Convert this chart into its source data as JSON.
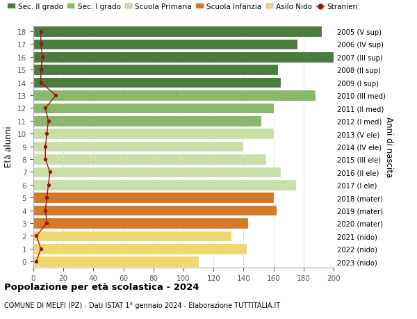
{
  "ages": [
    0,
    1,
    2,
    3,
    4,
    5,
    6,
    7,
    8,
    9,
    10,
    11,
    12,
    13,
    14,
    15,
    16,
    17,
    18
  ],
  "right_labels": [
    "2023 (nido)",
    "2022 (nido)",
    "2021 (nido)",
    "2020 (mater)",
    "2019 (mater)",
    "2018 (mater)",
    "2017 (I ele)",
    "2016 (II ele)",
    "2015 (III ele)",
    "2014 (IV ele)",
    "2013 (V ele)",
    "2012 (I med)",
    "2011 (II med)",
    "2010 (III med)",
    "2009 (I sup)",
    "2008 (II sup)",
    "2007 (III sup)",
    "2006 (IV sup)",
    "2005 (V sup)"
  ],
  "bar_values": [
    110,
    142,
    132,
    143,
    162,
    160,
    175,
    165,
    155,
    140,
    160,
    152,
    160,
    188,
    165,
    163,
    202,
    176,
    192
  ],
  "stranieri_values": [
    2,
    5,
    2,
    9,
    8,
    9,
    10,
    11,
    8,
    8,
    9,
    10,
    8,
    15,
    5,
    5,
    6,
    5,
    5
  ],
  "bar_colors": [
    "#f0d870",
    "#f0d870",
    "#f0d870",
    "#d4782a",
    "#d4782a",
    "#d4782a",
    "#c8e0a8",
    "#c8e0a8",
    "#c8e0a8",
    "#c8e0a8",
    "#c8e0a8",
    "#8ab86a",
    "#8ab86a",
    "#8ab86a",
    "#4a7c3f",
    "#4a7c3f",
    "#4a7c3f",
    "#4a7c3f",
    "#4a7c3f"
  ],
  "legend_labels": [
    "Sec. II grado",
    "Sec. I grado",
    "Scuola Primaria",
    "Scuola Infanzia",
    "Asilo Nido",
    "Stranieri"
  ],
  "legend_colors": [
    "#4a7c3f",
    "#8ab86a",
    "#c8e0a8",
    "#d4782a",
    "#f0d870",
    "#a01010"
  ],
  "title": "Popolazione per età scolastica - 2024",
  "subtitle": "COMUNE DI MELFI (PZ) - Dati ISTAT 1° gennaio 2024 - Elaborazione TUTTITALIA.IT",
  "ylabel": "Età alunni",
  "right_ylabel": "Anni di nascita",
  "xlim": [
    0,
    200
  ],
  "xticks": [
    0,
    20,
    40,
    60,
    80,
    100,
    120,
    140,
    160,
    180,
    200
  ],
  "stranieri_color": "#a01010",
  "bar_height": 0.85,
  "background_color": "#ffffff",
  "grid_color": "#cccccc"
}
